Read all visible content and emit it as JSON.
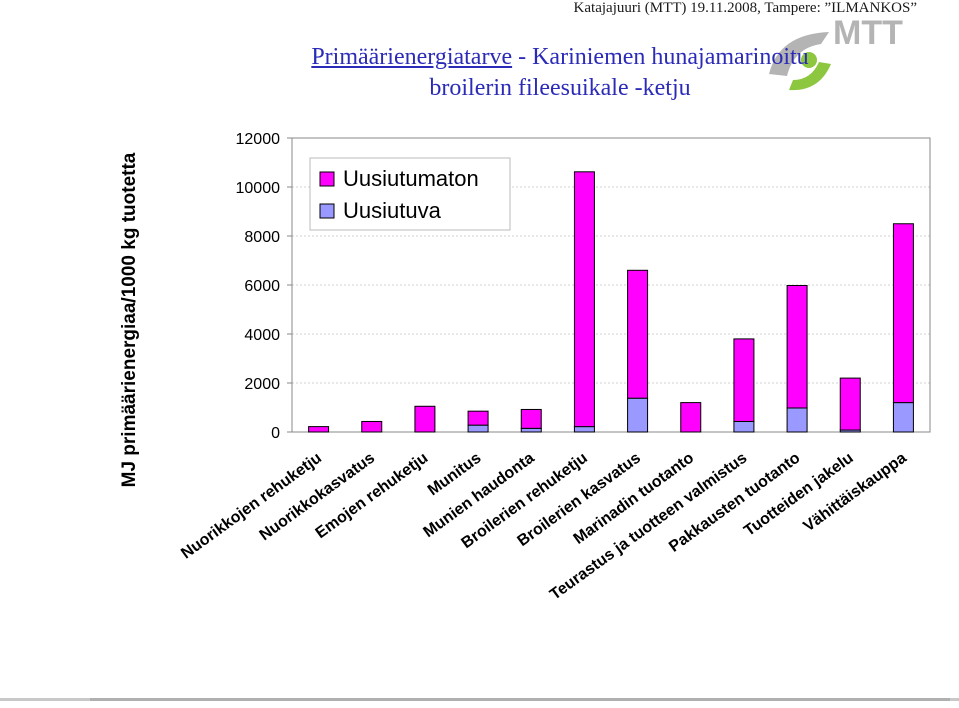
{
  "header": {
    "caption": "Katajajuuri (MTT) 19.11.2008, Tampere: ”ILMANKOS”",
    "logo_text": "MTT",
    "logo_colors": {
      "green": "#8dc63f",
      "gray": "#b4b4b4"
    }
  },
  "title": {
    "line1_underlined": "Primäärienergiatarve",
    "line1_rest": " - Kariniemen hunajamarinoitu",
    "line2": "broilerin fileesuikale -ketju"
  },
  "chart_data": {
    "type": "bar",
    "stacked": true,
    "ylabel": "MJ primäärienergiaa/1000 kg tuotetta",
    "xlabel": "",
    "ylim": [
      0,
      12000
    ],
    "yticks": [
      0,
      2000,
      4000,
      6000,
      8000,
      10000,
      12000
    ],
    "grid": true,
    "legend_position": "top-left",
    "categories": [
      "Nuorikkojen rehuketju",
      "Nuorikkokasvatus",
      "Emojen rehuketju",
      "Munitus",
      "Munien haudonta",
      "Broilerien rehuketju",
      "Broilerien kasvatus",
      "Marinadin tuotanto",
      "Teurastus ja tuotteen valmistus",
      "Pakkausten tuotanto",
      "Tuotteiden jakelu",
      "Vähittäiskauppa"
    ],
    "series": [
      {
        "name": "Uusiutuva",
        "color": "#9999ff",
        "values": [
          0,
          0,
          0,
          280,
          150,
          220,
          1380,
          0,
          430,
          980,
          80,
          1200
        ]
      },
      {
        "name": "Uusiutumaton",
        "color": "#ff00ff",
        "values": [
          220,
          430,
          1050,
          570,
          770,
          10400,
          5220,
          1200,
          3370,
          5000,
          2120,
          7300
        ]
      }
    ]
  }
}
